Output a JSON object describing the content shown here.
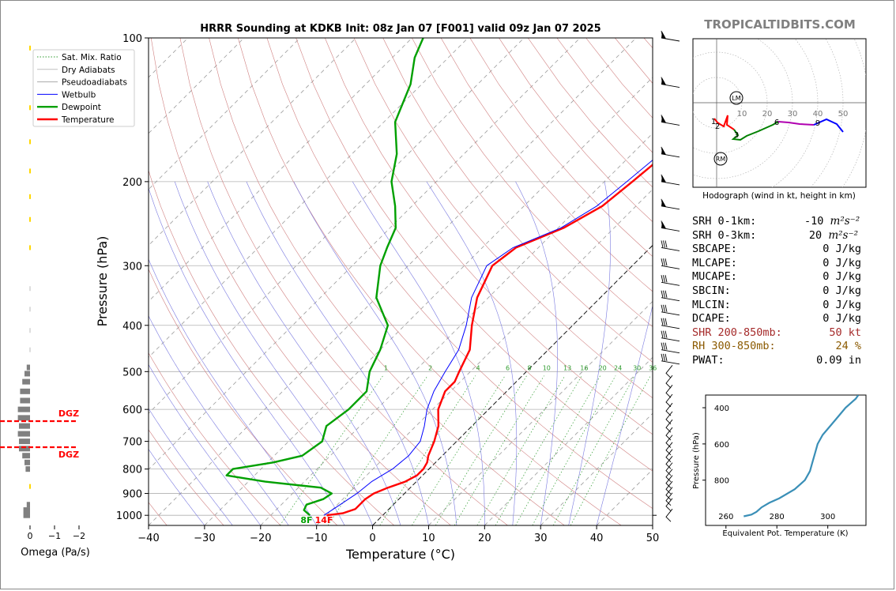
{
  "brand": "TROPICALTIDBITS.COM",
  "chart_data": {
    "type": "line",
    "title": "HRRR Sounding at KDKB Init: 08z Jan 07 [F001] valid 09z Jan 07 2025",
    "xlabel": "Temperature (°C)",
    "ylabel": "Pressure (hPa)",
    "xlim": [
      -40,
      50
    ],
    "ylim": [
      1050,
      100
    ],
    "y_scale": "log",
    "x_ticks": [
      -40,
      -30,
      -20,
      -10,
      0,
      10,
      20,
      30,
      40,
      50
    ],
    "x_tick_labels": [
      "−40",
      "−30",
      "−20",
      "−10",
      "0",
      "10",
      "20",
      "30",
      "40",
      "50"
    ],
    "y_ticks": [
      100,
      200,
      300,
      400,
      500,
      600,
      700,
      800,
      900,
      1000
    ],
    "y_tick_labels": [
      "100",
      "200",
      "300",
      "400",
      "500",
      "600",
      "700",
      "800",
      "900",
      "1000"
    ],
    "legend": {
      "position": "top-left",
      "entries": [
        "Sat. Mix. Ratio",
        "Dry Adiabats",
        "Pseudoadiabats",
        "Wetbulb",
        "Dewpoint",
        "Temperature"
      ]
    },
    "mixing_ratio_labels": [
      "1",
      "2",
      "4",
      "6",
      "8",
      "10",
      "13",
      "16",
      "20",
      "24",
      "30",
      "36"
    ],
    "surface_labels": {
      "dewpoint": "8F",
      "temperature": "14F"
    },
    "series": [
      {
        "name": "Temperature",
        "color": "#ff0000",
        "points": [
          [
            1000,
            -10
          ],
          [
            990,
            -7.5
          ],
          [
            970,
            -6
          ],
          [
            950,
            -6
          ],
          [
            925,
            -6
          ],
          [
            900,
            -5.5
          ],
          [
            875,
            -4
          ],
          [
            850,
            -2
          ],
          [
            825,
            -1
          ],
          [
            800,
            -1
          ],
          [
            775,
            -1.5
          ],
          [
            750,
            -2.5
          ],
          [
            700,
            -4
          ],
          [
            650,
            -6
          ],
          [
            600,
            -9
          ],
          [
            550,
            -11
          ],
          [
            525,
            -11
          ],
          [
            500,
            -12
          ],
          [
            450,
            -14
          ],
          [
            400,
            -18
          ],
          [
            350,
            -22
          ],
          [
            300,
            -25
          ],
          [
            275,
            -24
          ],
          [
            250,
            -19
          ],
          [
            225,
            -16
          ],
          [
            200,
            -15
          ],
          [
            175,
            -14
          ],
          [
            150,
            -15
          ],
          [
            125,
            -15
          ],
          [
            110,
            -15
          ],
          [
            100,
            -15
          ]
        ]
      },
      {
        "name": "Dewpoint",
        "color": "#00a000",
        "points": [
          [
            1000,
            -13
          ],
          [
            975,
            -15
          ],
          [
            950,
            -15.5
          ],
          [
            925,
            -13.5
          ],
          [
            900,
            -13
          ],
          [
            875,
            -16
          ],
          [
            850,
            -27
          ],
          [
            825,
            -35
          ],
          [
            800,
            -35
          ],
          [
            775,
            -29
          ],
          [
            750,
            -25
          ],
          [
            700,
            -24
          ],
          [
            650,
            -26
          ],
          [
            600,
            -25
          ],
          [
            550,
            -25
          ],
          [
            500,
            -28
          ],
          [
            450,
            -30
          ],
          [
            400,
            -33
          ],
          [
            350,
            -40
          ],
          [
            300,
            -45
          ],
          [
            275,
            -47
          ],
          [
            250,
            -49
          ],
          [
            225,
            -53
          ],
          [
            200,
            -58
          ],
          [
            175,
            -62
          ],
          [
            150,
            -68
          ],
          [
            125,
            -72
          ],
          [
            110,
            -76
          ],
          [
            100,
            -78
          ]
        ]
      },
      {
        "name": "Wetbulb",
        "color": "#0000ff",
        "points": [
          [
            1000,
            -10.5
          ],
          [
            975,
            -10
          ],
          [
            950,
            -9.5
          ],
          [
            925,
            -9
          ],
          [
            900,
            -8.5
          ],
          [
            850,
            -8
          ],
          [
            800,
            -6.5
          ],
          [
            750,
            -6
          ],
          [
            700,
            -6.5
          ],
          [
            650,
            -8.5
          ],
          [
            600,
            -11
          ],
          [
            550,
            -13
          ],
          [
            500,
            -14.5
          ],
          [
            450,
            -16
          ],
          [
            400,
            -19
          ],
          [
            350,
            -23
          ],
          [
            300,
            -26
          ],
          [
            275,
            -24.5
          ],
          [
            250,
            -19.5
          ],
          [
            225,
            -17
          ],
          [
            200,
            -16
          ],
          [
            175,
            -15
          ],
          [
            150,
            -16
          ],
          [
            125,
            -16
          ],
          [
            100,
            -16
          ]
        ]
      }
    ],
    "wind_barbs_hpa": [
      1000,
      950,
      925,
      900,
      875,
      850,
      825,
      800,
      775,
      750,
      725,
      700,
      675,
      650,
      625,
      600,
      575,
      550,
      525,
      500,
      475,
      450,
      425,
      400,
      375,
      350,
      325,
      300,
      275,
      250,
      225,
      200,
      175,
      150,
      125,
      100
    ],
    "omega": {
      "label": "Omega (Pa/s)",
      "x_tick_labels": [
        "0",
        "−1",
        "−2"
      ],
      "dgz_label": "DGZ",
      "dgz_hpa": [
        635,
        720
      ]
    },
    "hodograph": {
      "caption": "Hodograph (wind in kt, height in km)",
      "ring_labels": [
        "10",
        "20",
        "30",
        "40",
        "50"
      ],
      "height_labels": [
        "1",
        "2",
        "3",
        "6",
        "9"
      ],
      "markers": [
        "LM",
        "RM"
      ]
    },
    "theta_e": {
      "xlabel": "Equivalent Pot. Temperature (K)",
      "ylabel": "Pressure (hPa)",
      "x_tick_labels": [
        "260",
        "280",
        "300"
      ],
      "y_tick_labels": [
        "400",
        "600",
        "800"
      ],
      "color": "#3a8fb7"
    }
  },
  "stats": [
    {
      "label": "SRH 0-1km:",
      "value": "-10",
      "unit": "m²s⁻²",
      "color": "#000000"
    },
    {
      "label": "SRH 0-3km:",
      "value": "20",
      "unit": "m²s⁻²",
      "color": "#000000"
    },
    {
      "label": "SBCAPE:",
      "value": "0 J/kg",
      "unit": "",
      "color": "#000000"
    },
    {
      "label": "MLCAPE:",
      "value": "0 J/kg",
      "unit": "",
      "color": "#000000"
    },
    {
      "label": "MUCAPE:",
      "value": "0 J/kg",
      "unit": "",
      "color": "#000000"
    },
    {
      "label": "SBCIN:",
      "value": "0 J/kg",
      "unit": "",
      "color": "#000000"
    },
    {
      "label": "MLCIN:",
      "value": "0 J/kg",
      "unit": "",
      "color": "#000000"
    },
    {
      "label": "DCAPE:",
      "value": "0 J/kg",
      "unit": "",
      "color": "#000000"
    },
    {
      "label": "SHR 200-850mb:",
      "value": "50 kt",
      "unit": "",
      "color": "#a52a2a"
    },
    {
      "label": "RH 300-850mb:",
      "value": "24 %",
      "unit": "",
      "color": "#8b5a00"
    },
    {
      "label": "PWAT:",
      "value": "0.09 in",
      "unit": "",
      "color": "#000000"
    }
  ]
}
